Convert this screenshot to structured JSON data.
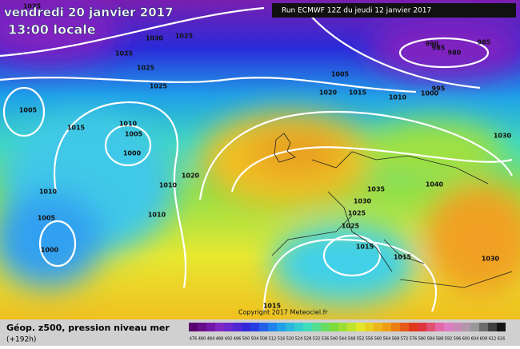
{
  "header": {
    "date": "vendredi 20 janvier 2017",
    "time": "13:00 locale",
    "run": "Run ECMWF 12Z du jeudi 12 janvier 2017"
  },
  "isobar_labels": [
    1025,
    1025,
    1030,
    1025,
    1025,
    1025,
    1005,
    1015,
    1010,
    1005,
    1000,
    1020,
    1010,
    1010,
    1005,
    1010,
    1000,
    990,
    985,
    985,
    980,
    1005,
    995,
    1020,
    1015,
    1010,
    1000,
    1030,
    1040,
    1035,
    1030,
    1025,
    1025,
    1015,
    1015,
    1030,
    1015
  ],
  "copyright": "Copyright 2017 Meteociel.fr",
  "footer": {
    "title": "Géop. z500, pression niveau mer",
    "lead": "(+192h)"
  },
  "scale": [
    476,
    480,
    484,
    488,
    492,
    496,
    500,
    504,
    508,
    512,
    516,
    520,
    524,
    528,
    532,
    536,
    540,
    544,
    548,
    552,
    556,
    560,
    564,
    568,
    572,
    576,
    580,
    584,
    588,
    592,
    596,
    600,
    604,
    608,
    612,
    616
  ]
}
